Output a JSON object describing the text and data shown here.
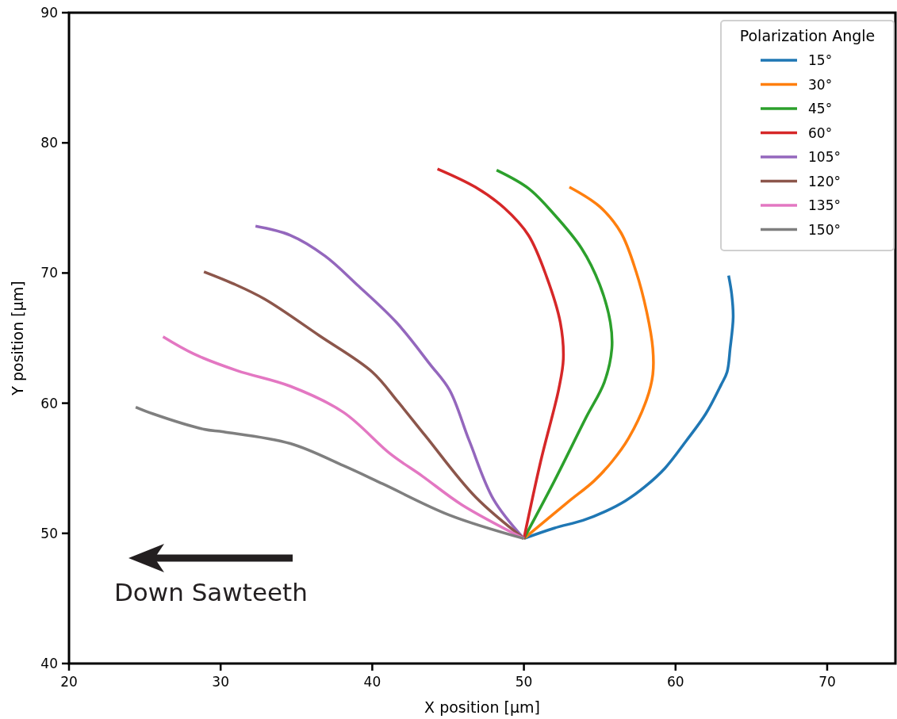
{
  "chart_data": {
    "type": "line",
    "xlabel": "X position [μm]",
    "ylabel": "Y position [μm]",
    "legend_title": "Polarization Angle",
    "legend": "top right",
    "grid": false,
    "marker": "none",
    "line_style": "solid",
    "xlim": [
      20,
      74.5
    ],
    "xticks": [
      20,
      30,
      40,
      50,
      60,
      70
    ],
    "ylim": [
      40,
      90
    ],
    "yticks": [
      40,
      50,
      60,
      70,
      80,
      90
    ],
    "annotations": [
      "Down Sawteeth"
    ],
    "series": [
      {
        "name": "15°",
        "color": "#1f77b4",
        "x": [
          50.0,
          52.0,
          53.9,
          55.4,
          56.7,
          58.0,
          59.3,
          60.7,
          62.0,
          63.0,
          63.4,
          63.6,
          63.8,
          63.7,
          63.5
        ],
        "values": [
          49.6,
          50.4,
          51.0,
          51.7,
          52.5,
          53.6,
          55.0,
          57.1,
          59.2,
          61.4,
          62.4,
          64.2,
          66.6,
          68.4,
          69.8
        ]
      },
      {
        "name": "30°",
        "color": "#ff7f0e",
        "x": [
          50.0,
          52.9,
          54.6,
          55.8,
          56.9,
          58.1,
          58.5,
          58.5,
          58.1,
          57.4,
          56.4,
          55.0,
          53.0
        ],
        "values": [
          49.6,
          52.4,
          54.0,
          55.5,
          57.3,
          60.3,
          62.2,
          64.2,
          67.0,
          70.1,
          73.1,
          75.1,
          76.6
        ]
      },
      {
        "name": "45°",
        "color": "#2ca02c",
        "x": [
          50.0,
          52.0,
          54.1,
          55.3,
          55.8,
          55.7,
          55.0,
          53.8,
          52.0,
          50.3,
          48.2
        ],
        "values": [
          49.6,
          54.0,
          58.9,
          61.6,
          64.2,
          66.2,
          69.1,
          71.9,
          74.5,
          76.5,
          77.9
        ]
      },
      {
        "name": "60°",
        "color": "#d62728",
        "x": [
          50.0,
          51.1,
          52.3,
          52.6,
          52.4,
          51.5,
          50.3,
          48.7,
          46.8,
          44.3
        ],
        "values": [
          49.6,
          55.5,
          61.1,
          63.4,
          66.2,
          69.7,
          72.9,
          75.0,
          76.6,
          78.0
        ]
      },
      {
        "name": "105°",
        "color": "#9467bd",
        "x": [
          50.0,
          48.0,
          46.4,
          45.1,
          43.8,
          41.6,
          39.0,
          36.9,
          34.6,
          32.3
        ],
        "values": [
          49.6,
          52.6,
          57.1,
          61.0,
          63.0,
          66.2,
          69.1,
          71.3,
          72.9,
          73.6
        ]
      },
      {
        "name": "120°",
        "color": "#8c564b",
        "x": [
          50.0,
          46.8,
          43.5,
          41.7,
          40.0,
          36.5,
          32.9,
          30.8,
          28.9
        ],
        "values": [
          49.6,
          52.8,
          57.5,
          60.1,
          62.4,
          65.2,
          68.0,
          69.2,
          70.1
        ]
      },
      {
        "name": "135°",
        "color": "#e377c2",
        "x": [
          50.0,
          45.9,
          43.3,
          41.2,
          38.1,
          34.6,
          31.1,
          28.2,
          26.2
        ],
        "values": [
          49.6,
          52.2,
          54.4,
          56.1,
          59.3,
          61.3,
          62.5,
          63.8,
          65.1
        ]
      },
      {
        "name": "150°",
        "color": "#7f7f7f",
        "x": [
          50.0,
          45.1,
          40.7,
          38.1,
          34.6,
          30.2,
          28.9,
          25.5,
          24.4
        ],
        "values": [
          49.6,
          51.4,
          53.8,
          55.2,
          56.9,
          57.8,
          58.0,
          59.2,
          59.7
        ]
      }
    ]
  }
}
